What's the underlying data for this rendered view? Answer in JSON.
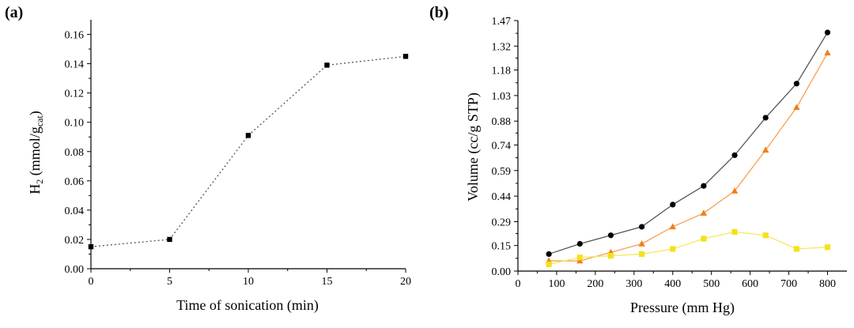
{
  "chart_data": [
    {
      "type": "line",
      "panel_label": "(a)",
      "xlabel": "Time of sonication (min)",
      "ylabel": "H2 (mmol/gcat)",
      "ylabel_parts": {
        "main": "H",
        "sub1": "2",
        "mid": " (mmol/g",
        "sub2": "cat",
        "end": ")"
      },
      "xlim": [
        0,
        20
      ],
      "ylim": [
        0,
        0.17
      ],
      "xticks": [
        "0",
        "5",
        "10",
        "15",
        "20"
      ],
      "yticks": [
        "0.00",
        "0.02",
        "0.04",
        "0.06",
        "0.08",
        "0.10",
        "0.12",
        "0.14",
        "0.16"
      ],
      "grid": false,
      "series": [
        {
          "name": "H2",
          "x": [
            0,
            5,
            10,
            15,
            20
          ],
          "values": [
            0.015,
            0.02,
            0.091,
            0.139,
            0.145
          ],
          "color": "#000000",
          "line_color": "#555555",
          "marker": "square",
          "line_style": "dotted"
        }
      ]
    },
    {
      "type": "line",
      "panel_label": "(b)",
      "xlabel": "Pressure (mm Hg)",
      "ylabel": "Volume (cc/g STP)",
      "xlim": [
        0,
        850
      ],
      "ylim": [
        0,
        1.47
      ],
      "xticks": [
        "0",
        "100",
        "200",
        "300",
        "400",
        "500",
        "600",
        "700",
        "800"
      ],
      "yticks": [
        "0.00",
        "0.15",
        "0.29",
        "0.44",
        "0.59",
        "0.74",
        "0.88",
        "1.03",
        "1.18",
        "1.32",
        "1.47"
      ],
      "grid": false,
      "series": [
        {
          "name": "series-black",
          "x": [
            80,
            160,
            240,
            320,
            400,
            480,
            560,
            640,
            720,
            800
          ],
          "values": [
            0.1,
            0.16,
            0.21,
            0.26,
            0.39,
            0.5,
            0.68,
            0.9,
            1.1,
            1.4
          ],
          "color": "#000000",
          "line_color": "#555555",
          "marker": "circle"
        },
        {
          "name": "series-orange",
          "x": [
            80,
            160,
            240,
            320,
            400,
            480,
            560,
            640,
            720,
            800
          ],
          "values": [
            0.06,
            0.06,
            0.11,
            0.16,
            0.26,
            0.34,
            0.47,
            0.71,
            0.96,
            1.28
          ],
          "color": "#f07f1a",
          "line_color": "#f7a050",
          "marker": "triangle"
        },
        {
          "name": "series-yellow",
          "x": [
            80,
            160,
            240,
            320,
            400,
            480,
            560,
            640,
            720,
            800
          ],
          "values": [
            0.04,
            0.08,
            0.09,
            0.1,
            0.13,
            0.19,
            0.23,
            0.21,
            0.13,
            0.14
          ],
          "color": "#f3e21a",
          "line_color": "#f5e85a",
          "marker": "square"
        }
      ]
    }
  ]
}
